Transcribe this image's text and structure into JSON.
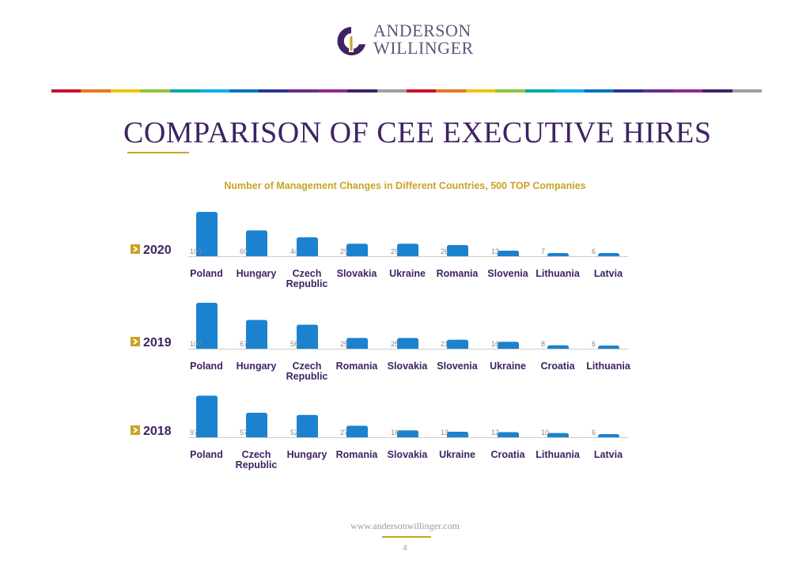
{
  "brand": {
    "line1": "ANDERSON",
    "line2": "WILLINGER",
    "stripe_colors": [
      "#c8102e",
      "#e87722",
      "#f2c400",
      "#8dc63f",
      "#00a99d",
      "#00aeef",
      "#0072bc",
      "#2e3192",
      "#662d91",
      "#92278f",
      "#3e2363",
      "#9e9e9e",
      "#c8102e",
      "#e87722",
      "#f2c400",
      "#8dc63f",
      "#00a99d",
      "#00aeef",
      "#0072bc",
      "#2e3192",
      "#662d91",
      "#92278f",
      "#3e2363",
      "#9e9e9e"
    ]
  },
  "page": {
    "title": "COMPARISON OF CEE EXECUTIVE HIRES",
    "website": "www.andersonwillinger.com",
    "page_number": "4"
  },
  "colors": {
    "bar": "#1b82cf",
    "title": "#3e2363",
    "label": "#3e2363",
    "gold": "#c9a227",
    "value": "#888888",
    "axis": "#cccccc"
  },
  "chart_data": [
    {
      "type": "bar",
      "title": "Number of Management Changes in Different Countries, 500 TOP Companies",
      "year": "2020",
      "categories": [
        "Poland",
        "Hungary",
        "Czech Republic",
        "Slovakia",
        "Ukraine",
        "Romania",
        "Slovenia",
        "Lithuania",
        "Latvia"
      ],
      "values": [
        103,
        60,
        44,
        29,
        29,
        26,
        13,
        7,
        6
      ],
      "ylim": [
        0,
        110
      ],
      "grid": false
    },
    {
      "type": "bar",
      "year": "2019",
      "categories": [
        "Poland",
        "Hungary",
        "Czech Republic",
        "Romania",
        "Slovakia",
        "Slovenia",
        "Ukraine",
        "Croatia",
        "Lithuania"
      ],
      "values": [
        107,
        67,
        56,
        25,
        25,
        21,
        16,
        8,
        6
      ],
      "ylim": [
        0,
        110
      ],
      "grid": false
    },
    {
      "type": "bar",
      "year": "2018",
      "categories": [
        "Poland",
        "Czech Republic",
        "Hungary",
        "Romania",
        "Slovakia",
        "Ukraine",
        "Croatia",
        "Lithuania",
        "Latvia"
      ],
      "values": [
        97,
        57,
        52,
        27,
        16,
        13,
        12,
        10,
        6
      ],
      "ylim": [
        0,
        110
      ],
      "grid": false
    }
  ]
}
